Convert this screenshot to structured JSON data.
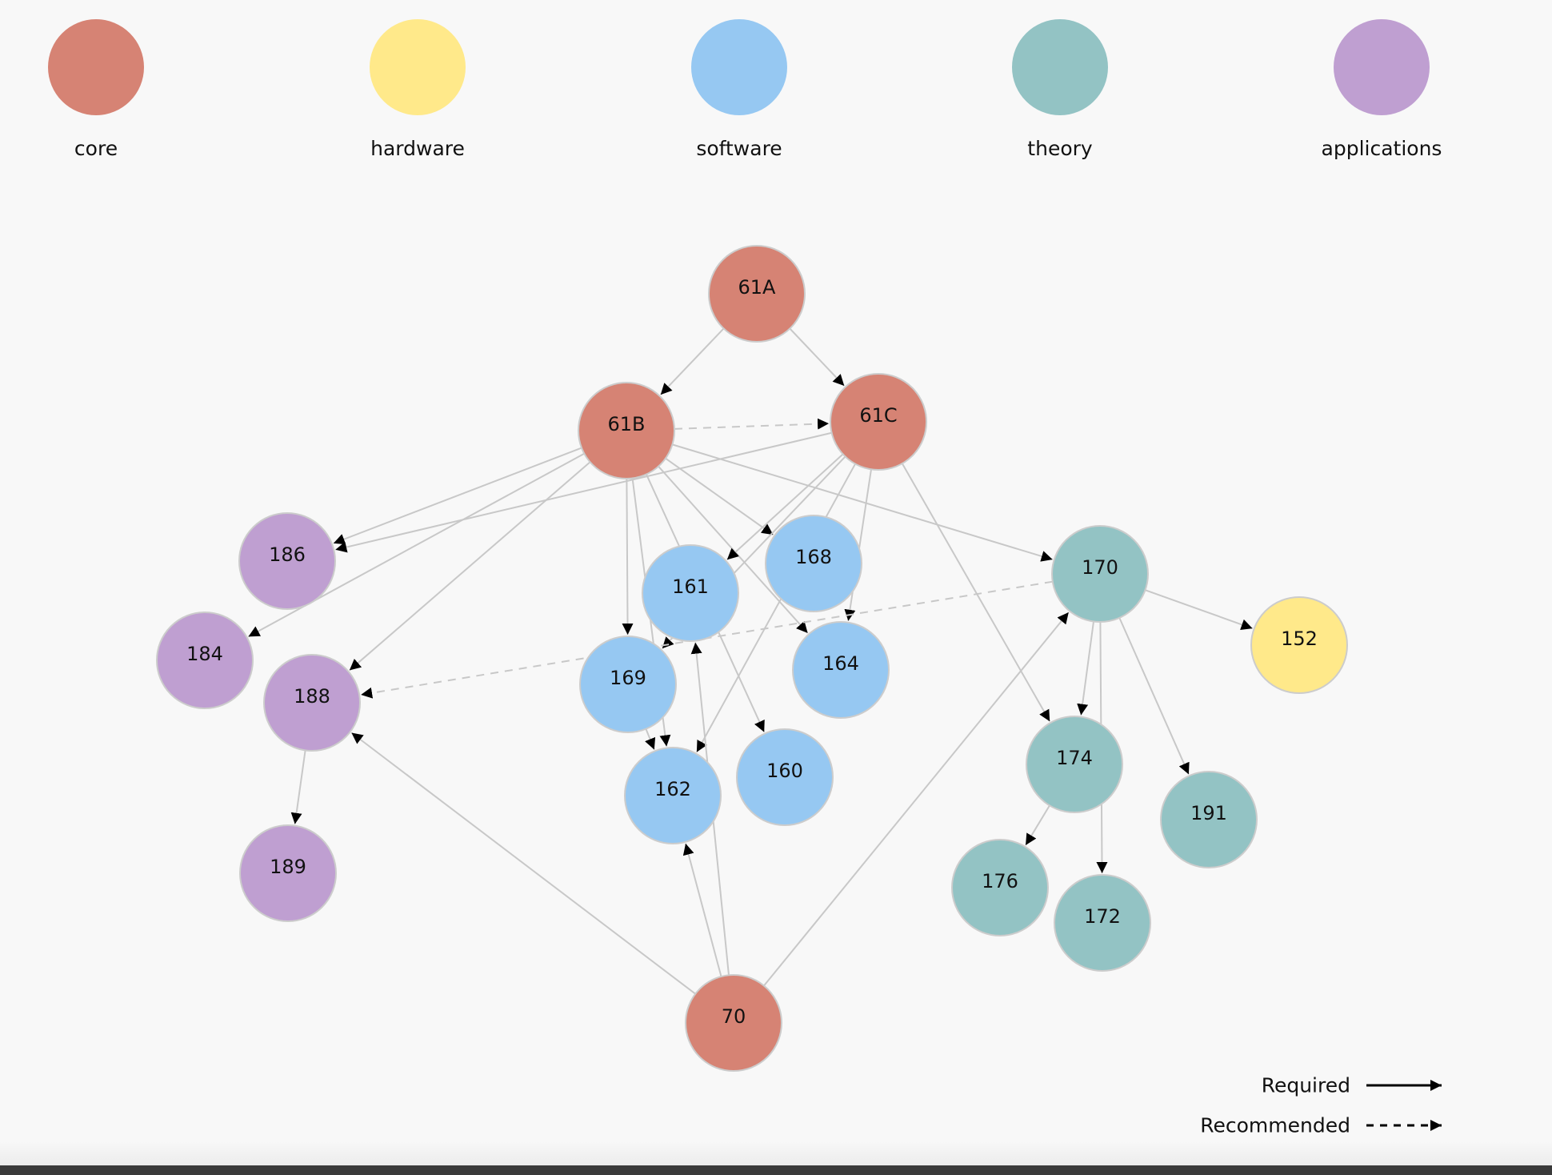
{
  "categories": [
    {
      "key": "core",
      "label": "core",
      "color": "#d68374"
    },
    {
      "key": "hardware",
      "label": "hardware",
      "color": "#ffe98a"
    },
    {
      "key": "software",
      "label": "software",
      "color": "#96c8f2"
    },
    {
      "key": "theory",
      "label": "theory",
      "color": "#93c3c4"
    },
    {
      "key": "applications",
      "label": "applications",
      "color": "#bf9fd1"
    }
  ],
  "nodes": [
    {
      "id": "61A",
      "label": "61A",
      "category": "core"
    },
    {
      "id": "61B",
      "label": "61B",
      "category": "core"
    },
    {
      "id": "61C",
      "label": "61C",
      "category": "core"
    },
    {
      "id": "70",
      "label": "70",
      "category": "core"
    },
    {
      "id": "186",
      "label": "186",
      "category": "applications"
    },
    {
      "id": "184",
      "label": "184",
      "category": "applications"
    },
    {
      "id": "188",
      "label": "188",
      "category": "applications"
    },
    {
      "id": "189",
      "label": "189",
      "category": "applications"
    },
    {
      "id": "161",
      "label": "161",
      "category": "software"
    },
    {
      "id": "168",
      "label": "168",
      "category": "software"
    },
    {
      "id": "169",
      "label": "169",
      "category": "software"
    },
    {
      "id": "164",
      "label": "164",
      "category": "software"
    },
    {
      "id": "162",
      "label": "162",
      "category": "software"
    },
    {
      "id": "160",
      "label": "160",
      "category": "software"
    },
    {
      "id": "170",
      "label": "170",
      "category": "theory"
    },
    {
      "id": "174",
      "label": "174",
      "category": "theory"
    },
    {
      "id": "191",
      "label": "191",
      "category": "theory"
    },
    {
      "id": "176",
      "label": "176",
      "category": "theory"
    },
    {
      "id": "172",
      "label": "172",
      "category": "theory"
    },
    {
      "id": "152",
      "label": "152",
      "category": "hardware"
    }
  ],
  "edges": [
    {
      "from": "61A",
      "to": "61B",
      "type": "required"
    },
    {
      "from": "61A",
      "to": "61C",
      "type": "required"
    },
    {
      "from": "61B",
      "to": "61C",
      "type": "recommended"
    },
    {
      "from": "61B",
      "to": "186",
      "type": "required"
    },
    {
      "from": "61B",
      "to": "184",
      "type": "required"
    },
    {
      "from": "61B",
      "to": "188",
      "type": "required"
    },
    {
      "from": "61B",
      "to": "169",
      "type": "required"
    },
    {
      "from": "61B",
      "to": "162",
      "type": "required"
    },
    {
      "from": "61B",
      "to": "160",
      "type": "required"
    },
    {
      "from": "61B",
      "to": "168",
      "type": "required"
    },
    {
      "from": "61B",
      "to": "164",
      "type": "required"
    },
    {
      "from": "61B",
      "to": "170",
      "type": "required"
    },
    {
      "from": "61C",
      "to": "186",
      "type": "required"
    },
    {
      "from": "61C",
      "to": "161",
      "type": "required"
    },
    {
      "from": "61C",
      "to": "169",
      "type": "required"
    },
    {
      "from": "61C",
      "to": "162",
      "type": "required"
    },
    {
      "from": "61C",
      "to": "164",
      "type": "required"
    },
    {
      "from": "61C",
      "to": "174",
      "type": "required"
    },
    {
      "from": "170",
      "to": "152",
      "type": "required"
    },
    {
      "from": "170",
      "to": "174",
      "type": "required"
    },
    {
      "from": "170",
      "to": "172",
      "type": "required"
    },
    {
      "from": "170",
      "to": "191",
      "type": "required"
    },
    {
      "from": "170",
      "to": "188",
      "type": "recommended"
    },
    {
      "from": "174",
      "to": "176",
      "type": "required"
    },
    {
      "from": "169",
      "to": "162",
      "type": "required"
    },
    {
      "from": "188",
      "to": "189",
      "type": "required"
    },
    {
      "from": "70",
      "to": "188",
      "type": "required"
    },
    {
      "from": "70",
      "to": "162",
      "type": "required"
    },
    {
      "from": "70",
      "to": "161",
      "type": "required"
    },
    {
      "from": "70",
      "to": "170",
      "type": "required"
    }
  ],
  "key": {
    "required_label": "Required",
    "recommended_label": "Recommended"
  },
  "colors": {
    "background": "#f8f8f8",
    "edge": "#c8c8c8",
    "node_stroke": "#cccccc",
    "arrow": "#000000"
  }
}
